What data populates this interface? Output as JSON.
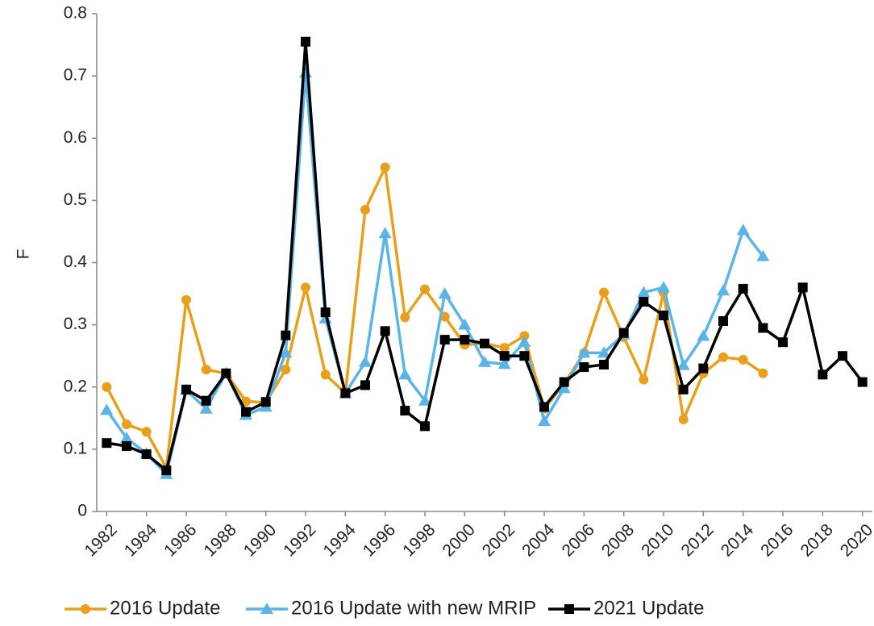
{
  "chart_data": {
    "type": "line",
    "y_label": "F",
    "x": [
      1982,
      1983,
      1984,
      1985,
      1986,
      1987,
      1988,
      1989,
      1990,
      1991,
      1992,
      1993,
      1994,
      1995,
      1996,
      1997,
      1998,
      1999,
      2000,
      2001,
      2002,
      2003,
      2004,
      2005,
      2006,
      2007,
      2008,
      2009,
      2010,
      2011,
      2012,
      2013,
      2014,
      2015,
      2016,
      2017,
      2018,
      2019,
      2020
    ],
    "xlim": [
      1981.5,
      2020.5
    ],
    "xticks": [
      1982,
      1984,
      1986,
      1988,
      1990,
      1992,
      1994,
      1996,
      1998,
      2000,
      2002,
      2004,
      2006,
      2008,
      2010,
      2012,
      2014,
      2016,
      2018,
      2020
    ],
    "ylim": [
      0,
      0.8
    ],
    "yticks": [
      0,
      0.1,
      0.2,
      0.3,
      0.4,
      0.5,
      0.6,
      0.7,
      0.8
    ],
    "series": [
      {
        "name": "2016 Update",
        "color": "#e8a01c",
        "marker": "circle",
        "values": [
          0.2,
          0.14,
          0.128,
          0.07,
          0.34,
          0.228,
          0.222,
          0.177,
          0.175,
          0.228,
          0.36,
          0.22,
          0.19,
          0.485,
          0.553,
          0.312,
          0.357,
          0.313,
          0.268,
          0.27,
          0.263,
          0.282,
          0.165,
          0.205,
          0.255,
          0.352,
          0.28,
          0.212,
          0.352,
          0.148,
          0.222,
          0.248,
          0.244,
          0.222,
          null,
          null,
          null,
          null,
          null
        ]
      },
      {
        "name": "2016 Update with new MRIP",
        "color": "#5bb4e8",
        "marker": "triangle",
        "values": [
          0.163,
          0.118,
          0.093,
          0.06,
          0.195,
          0.165,
          0.222,
          0.155,
          0.168,
          0.255,
          0.705,
          0.31,
          0.19,
          0.24,
          0.447,
          0.22,
          0.178,
          0.35,
          0.3,
          0.24,
          0.237,
          0.272,
          0.145,
          0.198,
          0.255,
          0.255,
          0.285,
          0.352,
          0.36,
          0.235,
          0.282,
          0.355,
          0.452,
          0.41,
          null,
          null,
          null,
          null,
          null
        ]
      },
      {
        "name": "2021 Update",
        "color": "#000000",
        "marker": "square",
        "values": [
          0.11,
          0.105,
          0.092,
          0.066,
          0.196,
          0.178,
          0.222,
          0.16,
          0.176,
          0.283,
          0.755,
          0.32,
          0.19,
          0.203,
          0.29,
          0.162,
          0.137,
          0.276,
          0.276,
          0.27,
          0.25,
          0.25,
          0.168,
          0.208,
          0.232,
          0.236,
          0.287,
          0.337,
          0.315,
          0.196,
          0.23,
          0.306,
          0.358,
          0.295,
          0.272,
          0.36,
          0.22,
          0.25,
          0.208
        ]
      }
    ]
  }
}
